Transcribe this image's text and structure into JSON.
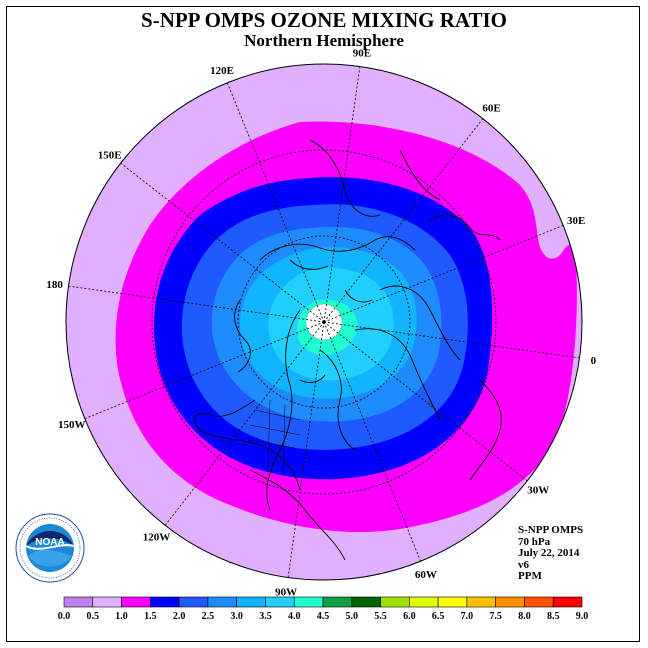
{
  "title": "S-NPP OMPS OZONE MIXING RATIO",
  "subtitle": "Northern Hemisphere",
  "longitude_labels": [
    "90E",
    "60E",
    "30E",
    "0",
    "30W",
    "60W",
    "90W",
    "120W",
    "150W",
    "180",
    "150E",
    "120E"
  ],
  "info": {
    "instrument": "S-NPP OMPS",
    "level": "70 hPa",
    "date": "July 22, 2014",
    "version": "v6",
    "units": "PPM"
  },
  "logo_text": "NOAA",
  "colorbar": {
    "labels": [
      "0.0",
      "0.5",
      "1.0",
      "1.5",
      "2.0",
      "2.5",
      "3.0",
      "3.5",
      "4.0",
      "4.5",
      "5.0",
      "5.5",
      "6.0",
      "6.5",
      "7.0",
      "7.5",
      "8.0",
      "8.5",
      "9.0"
    ],
    "colors": [
      "#c080f0",
      "#e0b0ff",
      "#ff00ff",
      "#0000ff",
      "#1e5aff",
      "#1e8cff",
      "#10b4ff",
      "#20d0ff",
      "#20ffd0",
      "#10a040",
      "#006400",
      "#a0e000",
      "#e0ff00",
      "#ffff00",
      "#ffc000",
      "#ff9000",
      "#ff5000",
      "#ff0000",
      "#8b5a3c"
    ]
  },
  "contour_fills": {
    "outer": "#e0b0ff",
    "level_1_0": "#ff00ff",
    "level_1_5": "#0000ff",
    "level_2_0": "#1e5aff",
    "level_2_5": "#1e8cff",
    "level_3_0": "#10b4ff",
    "level_3_5": "#20d0ff",
    "level_4_0": "#20ffd0"
  }
}
